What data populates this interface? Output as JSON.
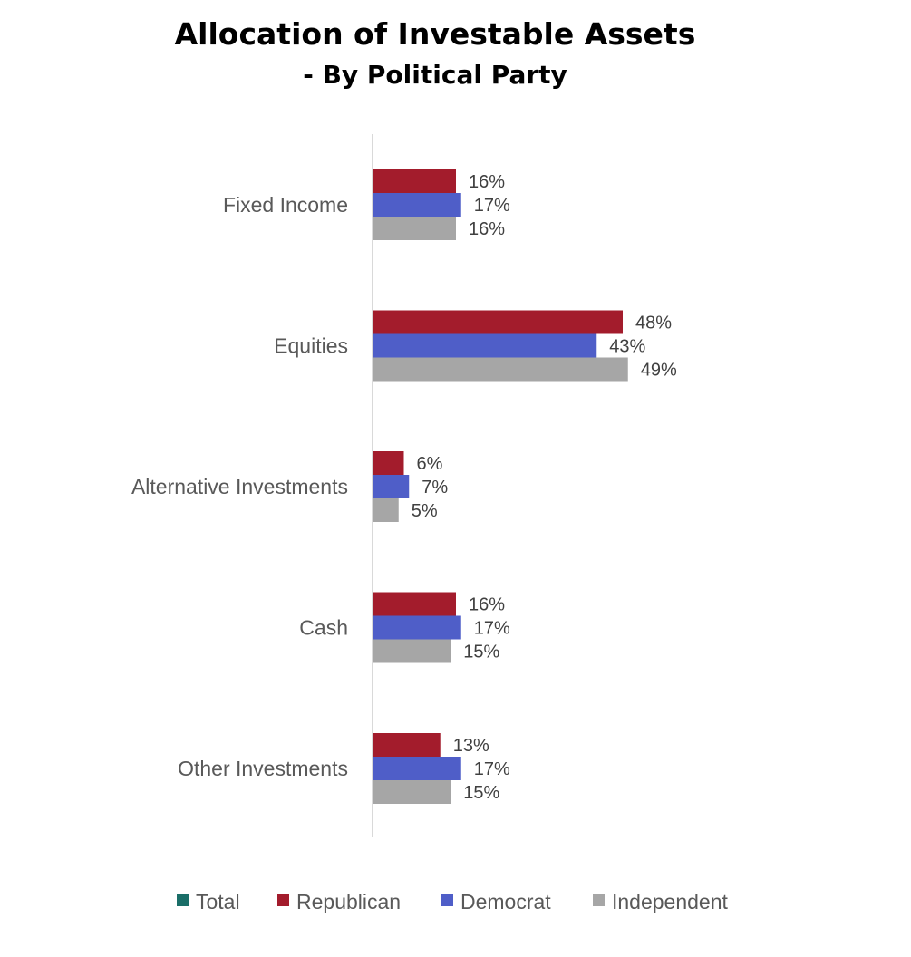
{
  "chart_data": {
    "type": "bar",
    "orientation": "horizontal",
    "title": "Allocation of Investable Assets",
    "subtitle": "- By Political Party",
    "categories": [
      "Fixed Income",
      "Equities",
      "Alternative Investments",
      "Cash",
      "Other Investments"
    ],
    "series": [
      {
        "name": "Total",
        "color": "#1a6e68",
        "values": [
          null,
          null,
          null,
          null,
          null
        ],
        "labels": [
          null,
          null,
          null,
          null,
          null
        ]
      },
      {
        "name": "Republican",
        "color": "#a31c2c",
        "values": [
          16,
          48,
          6,
          16,
          13
        ],
        "labels": [
          "16%",
          "48%",
          "6%",
          "16%",
          "13%"
        ]
      },
      {
        "name": "Democrat",
        "color": "#4f5ec8",
        "values": [
          17,
          43,
          7,
          17,
          17
        ],
        "labels": [
          "17%",
          "43%",
          "7%",
          "17%",
          "17%"
        ]
      },
      {
        "name": "Independent",
        "color": "#a6a6a6",
        "values": [
          16,
          49,
          5,
          15,
          15
        ],
        "labels": [
          "16%",
          "49%",
          "5%",
          "15%",
          "15%"
        ]
      }
    ],
    "xlim": [
      0,
      100
    ],
    "grid": false,
    "legend": "bottom"
  }
}
